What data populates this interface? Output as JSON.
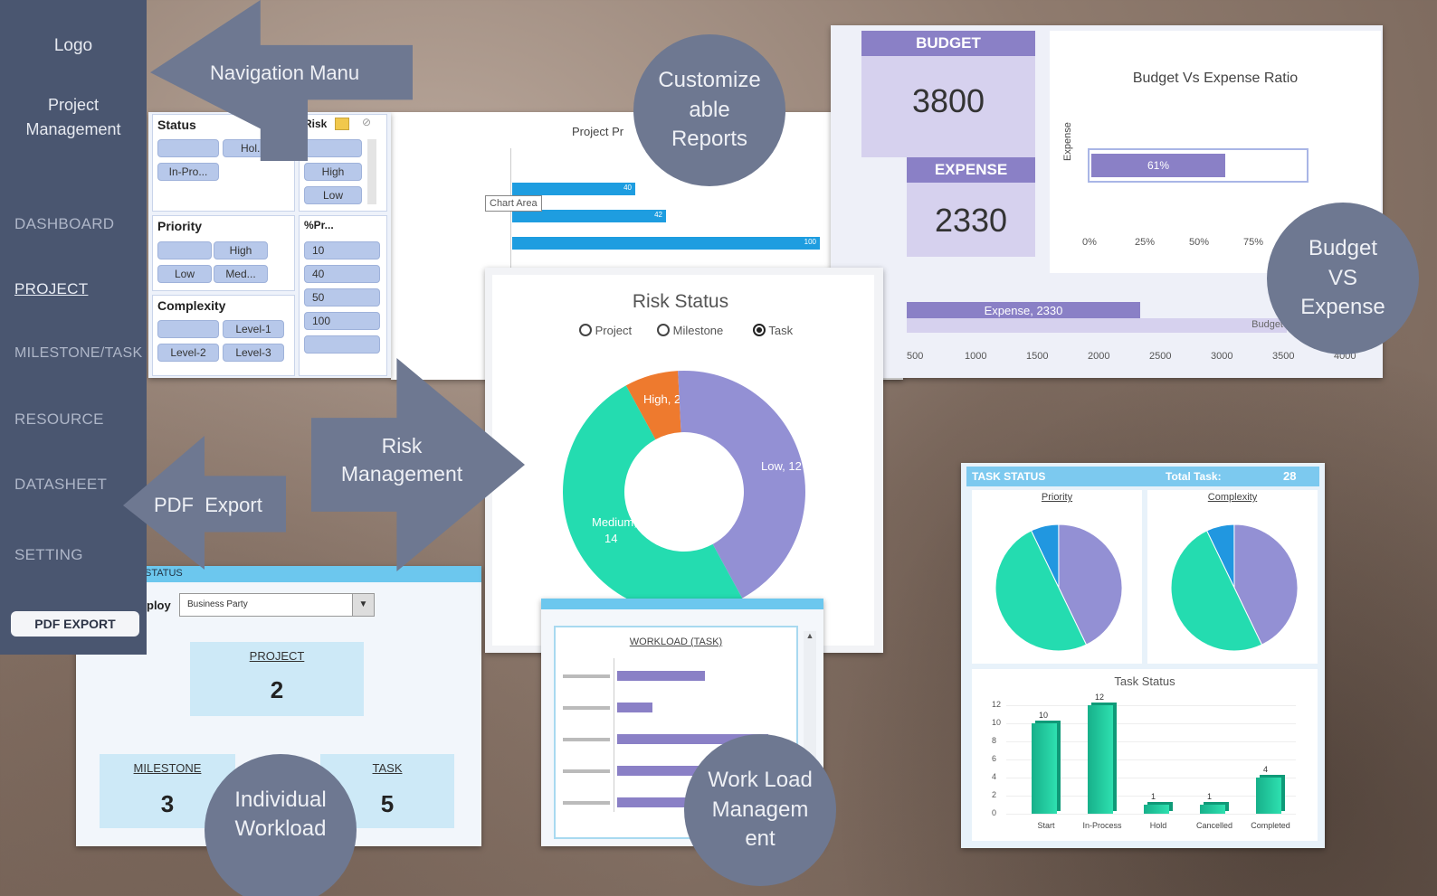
{
  "sidebar": {
    "logo": "Logo",
    "app_title_line1": "Project",
    "app_title_line2": "Management",
    "items": [
      {
        "label": "DASHBOARD",
        "active": false
      },
      {
        "label": "PROJECT",
        "active": true
      },
      {
        "label": "MILESTONE/TASK",
        "active": false
      },
      {
        "label": "RESOURCE",
        "active": false
      },
      {
        "label": "DATASHEET",
        "active": false
      },
      {
        "label": "SETTING",
        "active": false
      }
    ],
    "pdf_button": "PDF EXPORT"
  },
  "callouts": {
    "navigation": "Navigation Manu",
    "reports_1": "Customize",
    "reports_2": "able",
    "reports_3": "Reports",
    "budget_1": "Budget",
    "budget_2": "VS",
    "budget_3": "Expense",
    "risk_1": "Risk",
    "risk_2": "Management",
    "pdf": "PDF  Export",
    "individual_1": "Individual",
    "individual_2": "Workload",
    "workload_1": "Work Load",
    "workload_2": "Managem",
    "workload_3": "ent"
  },
  "slicers": {
    "status": {
      "title": "Status",
      "chips": [
        "Hol...",
        "In-Pro..."
      ]
    },
    "risk": {
      "title": "Risk",
      "chips": [
        "High",
        "Low"
      ]
    },
    "priority": {
      "title": "Priority",
      "chips": [
        "High",
        "Low",
        "Med..."
      ]
    },
    "progress": {
      "title": "%Pr...",
      "chips": [
        "10",
        "40",
        "50",
        "100"
      ]
    },
    "complexity": {
      "title": "Complexity",
      "chips": [
        "Level-1",
        "Level-2",
        "Level-3"
      ]
    }
  },
  "project_progress": {
    "title": "Project Pr",
    "tooltip": "Chart Area",
    "bar_labels": [
      "40",
      "42",
      "100"
    ]
  },
  "budget": {
    "budget_label": "BUDGET",
    "budget_value": "3800",
    "expense_label": "EXPENSE",
    "expense_value": "2330",
    "ratio_title": "Budget Vs Expense Ratio",
    "ratio_axis_label": "Expense",
    "ratio_bar_label": "61%",
    "ratio_ticks": [
      "0%",
      "25%",
      "50%",
      "75%"
    ],
    "expense_bar_label": "Expense, 2330",
    "budget_bar_label": "Budget",
    "x_ticks": [
      "500",
      "1000",
      "1500",
      "2000",
      "2500",
      "3000",
      "3500",
      "4000"
    ]
  },
  "risk": {
    "title": "Risk Status",
    "options": [
      "Project",
      "Milestone",
      "Task"
    ],
    "selected": "Task",
    "slices": [
      {
        "label": "High, 2",
        "value": 2,
        "color": "#ee7a2e"
      },
      {
        "label": "Low, 12",
        "value": 12,
        "color": "#9390d4"
      },
      {
        "label": "Medium,",
        "label2": "14",
        "value": 14,
        "color": "#24dcb0"
      }
    ]
  },
  "workload": {
    "title": "WORKLOAD (TASK)",
    "bars": [
      0.55,
      0.22,
      0.95,
      0.55,
      0.6
    ]
  },
  "individual": {
    "header": "STATUS",
    "employee_label": "ploy",
    "employee_value": "Business Party",
    "project_label": "PROJECT",
    "project_value": "2",
    "milestone_label": "MILESTONE",
    "milestone_value": "3",
    "task_label": "TASK",
    "task_value": "5"
  },
  "task_status": {
    "header": "TASK STATUS",
    "total_label": "Total Task:",
    "total_value": "28",
    "priority_title": "Priority",
    "complexity_title": "Complexity",
    "bar_title": "Task Status",
    "y_ticks": [
      "12",
      "10",
      "8",
      "6",
      "4",
      "2",
      "0"
    ],
    "categories": [
      "Start",
      "In-Process",
      "Hold",
      "Cancelled",
      "Completed"
    ],
    "values": [
      10,
      12,
      1,
      1,
      4
    ]
  }
}
